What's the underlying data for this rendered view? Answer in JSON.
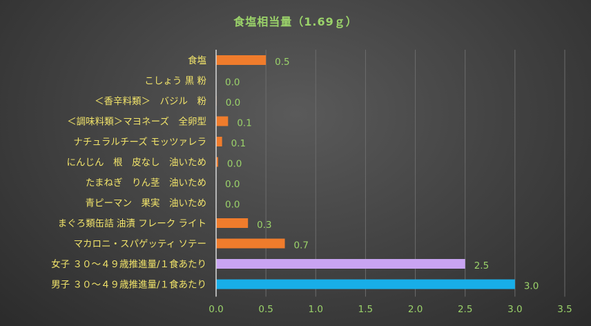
{
  "chart_data": {
    "type": "bar",
    "orientation": "horizontal",
    "title": "食塩相当量（1.69ｇ）",
    "categories": [
      "食塩",
      "こしょう 黒 粉",
      "＜香辛料類＞　バジル　粉",
      "＜調味料類＞マヨネーズ　全卵型",
      "ナチュラルチーズ モッツァレラ",
      "にんじん　根　皮なし　油いため",
      "たまねぎ　りん茎　油いため",
      "青ピーマン　果実　油いため",
      "まぐろ類缶詰 油漬 フレーク ライト",
      "マカロニ・スパゲッティ ソテー",
      "女子 ３０～４９歳推進量/１食あたり",
      "男子 ３０～４９歳推進量/１食あたり"
    ],
    "values": [
      0.5,
      0.0,
      0.0,
      0.1,
      0.1,
      0.0,
      0.0,
      0.0,
      0.3,
      0.7,
      2.5,
      3.0
    ],
    "value_labels": [
      "0.5",
      "0.0",
      "0.0",
      "0.1",
      "0.1",
      "0.0",
      "0.0",
      "0.0",
      "0.3",
      "0.7",
      "2.5",
      "3.0"
    ],
    "precise_values": [
      0.5,
      0.0,
      0.005,
      0.12,
      0.06,
      0.02,
      0.0,
      0.0,
      0.32,
      0.69,
      2.5,
      3.0
    ],
    "bar_colors": [
      "#f07c2c",
      "#f07c2c",
      "#f07c2c",
      "#f07c2c",
      "#f07c2c",
      "#f07c2c",
      "#f07c2c",
      "#f07c2c",
      "#f07c2c",
      "#f07c2c",
      "#c9a4f2",
      "#18aee8"
    ],
    "xlim": [
      0,
      3.5
    ],
    "xticks": [
      0.0,
      0.5,
      1.0,
      1.5,
      2.0,
      2.5,
      3.0,
      3.5
    ],
    "xtick_labels": [
      "0.0",
      "0.5",
      "1.0",
      "1.5",
      "2.0",
      "2.5",
      "3.0",
      "3.5"
    ],
    "xlabel": "",
    "ylabel": "",
    "grid": "vertical",
    "legend": "none"
  }
}
